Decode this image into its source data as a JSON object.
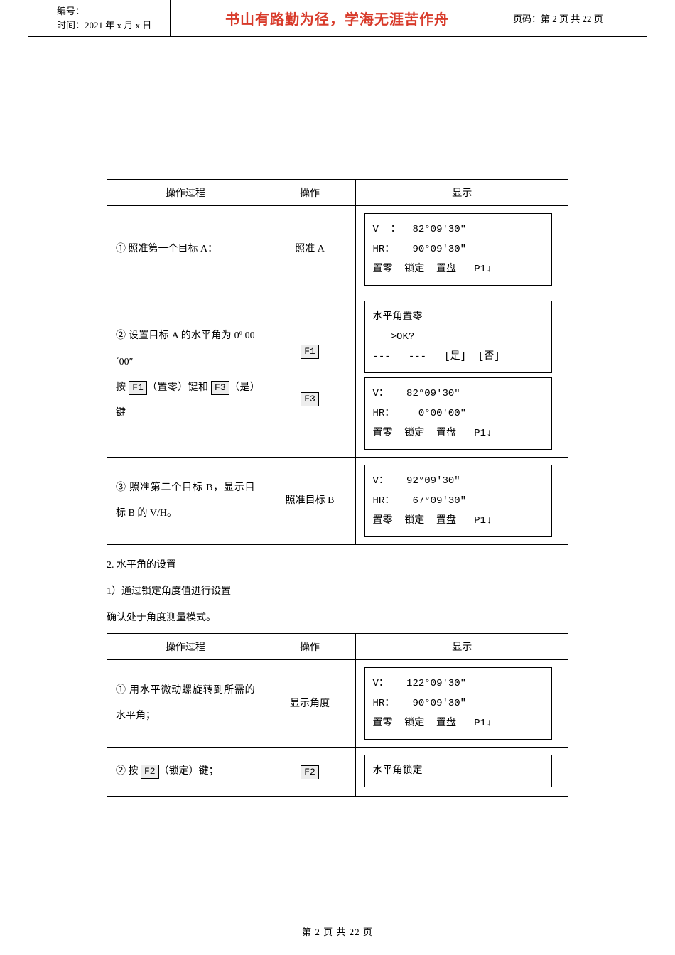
{
  "header": {
    "doc_no_label": "编号：",
    "time_label": "时间：2021 年 x 月 x 日",
    "motto": "书山有路勤为径，学海无涯苦作舟",
    "page_label": "页码：第 2 页  共 22 页"
  },
  "table1": {
    "headers": {
      "process": "操作过程",
      "operation": "操作",
      "display": "显示"
    },
    "rows": [
      {
        "process_plain": "① 照准第一个目标 A：",
        "operation_plain": "照准 A",
        "screens": [
          "V  ：  82°09′30″\nHR：   90°09′30″\n置零  锁定  置盘   P1↓"
        ]
      },
      {
        "process_html": "② 设置目标 A 的水平角为 0º 00´00″<br>按 <span class='key-box'>F1</span>（置零）键和 <span class='key-box'>F3</span>（是）键",
        "operation_html": "<span class='key-box'>F1</span><br><br><span class='key-box'>F3</span>",
        "screens": [
          "水平角置零\n   >OK?\n---   ---   [是]  [否]",
          "V：   82°09′30″\nHR：    0°00′00″\n置零  锁定  置盘   P1↓"
        ]
      },
      {
        "process_plain": "③ 照准第二个目标 B，显示目标 B 的 V/H。",
        "operation_plain": "照准目标 B",
        "screens": [
          "V：   92°09′30″\nHR：   67°09′30″\n置零  锁定  置盘   P1↓"
        ]
      }
    ]
  },
  "body": {
    "line1": "2. 水平角的设置",
    "line2": "1）通过锁定角度值进行设置",
    "line3": "确认处于角度测量模式。"
  },
  "table2": {
    "headers": {
      "process": "操作过程",
      "operation": "操作",
      "display": "显示"
    },
    "rows": [
      {
        "process_plain": "① 用水平微动螺旋转到所需的水平角；",
        "operation_plain": "显示角度",
        "screens": [
          "V：   122°09′30″\nHR：   90°09′30″\n置零  锁定  置盘   P1↓"
        ]
      },
      {
        "process_html": "② 按 <span class='key-box'>F2</span>（锁定）键；",
        "operation_html": "<span class='key-box'>F2</span>",
        "screens": [
          "水平角锁定"
        ]
      }
    ]
  },
  "footer": {
    "text": "第 2 页 共 22 页"
  }
}
